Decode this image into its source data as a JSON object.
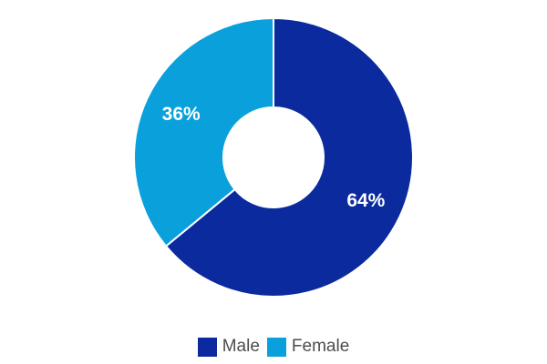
{
  "chart_data": {
    "type": "pie",
    "variant": "donut",
    "legend_position": "bottom",
    "slices": [
      {
        "label": "Male",
        "value": 64,
        "value_label": "64%",
        "color": "#0a2a9e"
      },
      {
        "label": "Female",
        "value": 36,
        "value_label": "36%",
        "color": "#0aa0dc"
      }
    ]
  }
}
